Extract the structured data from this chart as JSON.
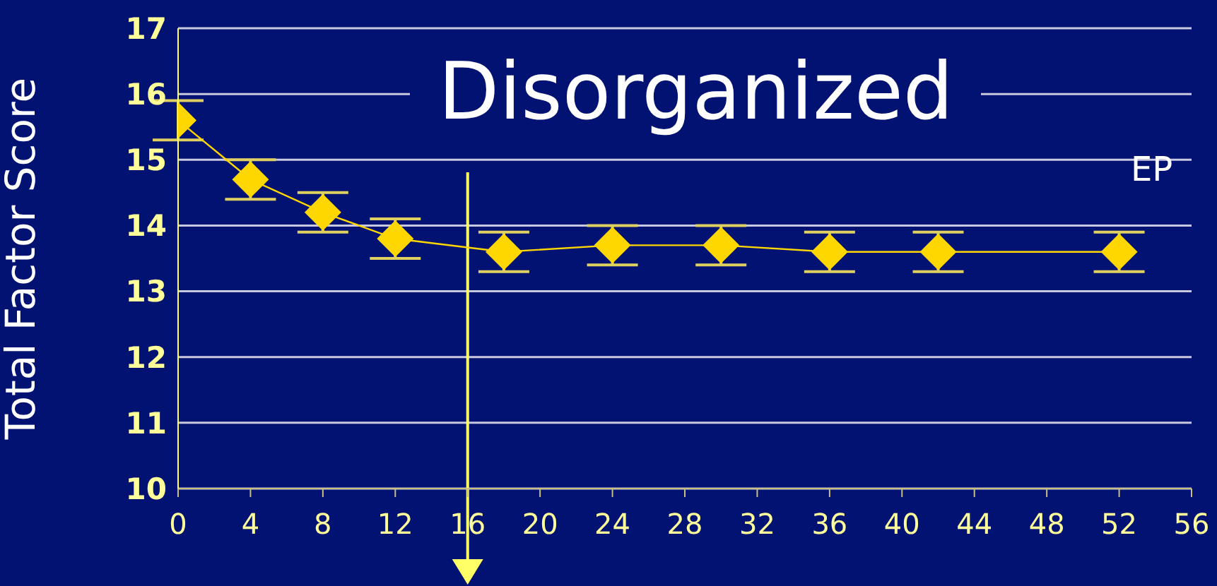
{
  "chart_data": {
    "type": "line",
    "title": "Disorganized",
    "ylabel": "Total Factor Score",
    "x": [
      0,
      4,
      8,
      12,
      18,
      24,
      30,
      36,
      42,
      52
    ],
    "series": [
      {
        "color": "#ffd700",
        "values": [
          15.6,
          14.7,
          14.2,
          13.8,
          13.6,
          13.7,
          13.7,
          13.6,
          13.6,
          13.6
        ],
        "errors": [
          0.3,
          0.3,
          0.3,
          0.3,
          0.3,
          0.3,
          0.3,
          0.3,
          0.3,
          0.3
        ]
      }
    ],
    "xlim": [
      0,
      56
    ],
    "xticks": [
      0,
      4,
      8,
      12,
      16,
      20,
      24,
      28,
      32,
      36,
      40,
      44,
      48,
      52,
      56
    ],
    "ylim": [
      10,
      17
    ],
    "yticks": [
      10,
      11,
      12,
      13,
      14,
      15,
      16,
      17
    ],
    "grid": "y",
    "marker": "diamond",
    "line_style": "solid",
    "ref_lines": [
      {
        "axis": "x",
        "value": 16,
        "color": "#ffff66"
      }
    ],
    "annotations": [
      "EP"
    ]
  }
}
